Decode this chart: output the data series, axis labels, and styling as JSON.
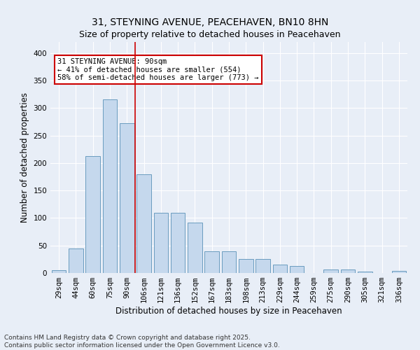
{
  "title": "31, STEYNING AVENUE, PEACEHAVEN, BN10 8HN",
  "subtitle": "Size of property relative to detached houses in Peacehaven",
  "xlabel": "Distribution of detached houses by size in Peacehaven",
  "ylabel": "Number of detached properties",
  "categories": [
    "29sqm",
    "44sqm",
    "60sqm",
    "75sqm",
    "90sqm",
    "106sqm",
    "121sqm",
    "136sqm",
    "152sqm",
    "167sqm",
    "183sqm",
    "198sqm",
    "213sqm",
    "229sqm",
    "244sqm",
    "259sqm",
    "275sqm",
    "290sqm",
    "305sqm",
    "321sqm",
    "336sqm"
  ],
  "values": [
    5,
    45,
    213,
    315,
    272,
    180,
    110,
    110,
    92,
    40,
    40,
    25,
    25,
    15,
    13,
    0,
    7,
    7,
    3,
    0,
    4
  ],
  "bar_color": "#c5d8ed",
  "bar_edge_color": "#6a9cbf",
  "property_line_idx": 4,
  "annotation_text": "31 STEYNING AVENUE: 90sqm\n← 41% of detached houses are smaller (554)\n58% of semi-detached houses are larger (773) →",
  "annotation_box_color": "#ffffff",
  "annotation_box_edge_color": "#cc0000",
  "vline_color": "#cc0000",
  "ylim": [
    0,
    420
  ],
  "yticks": [
    0,
    50,
    100,
    150,
    200,
    250,
    300,
    350,
    400
  ],
  "footer": "Contains HM Land Registry data © Crown copyright and database right 2025.\nContains public sector information licensed under the Open Government Licence v3.0.",
  "title_fontsize": 10,
  "axis_label_fontsize": 8.5,
  "tick_fontsize": 7.5,
  "footer_fontsize": 6.5,
  "annotation_fontsize": 7.5,
  "bg_color": "#e8eef7",
  "plot_bg_color": "#e8eef7"
}
